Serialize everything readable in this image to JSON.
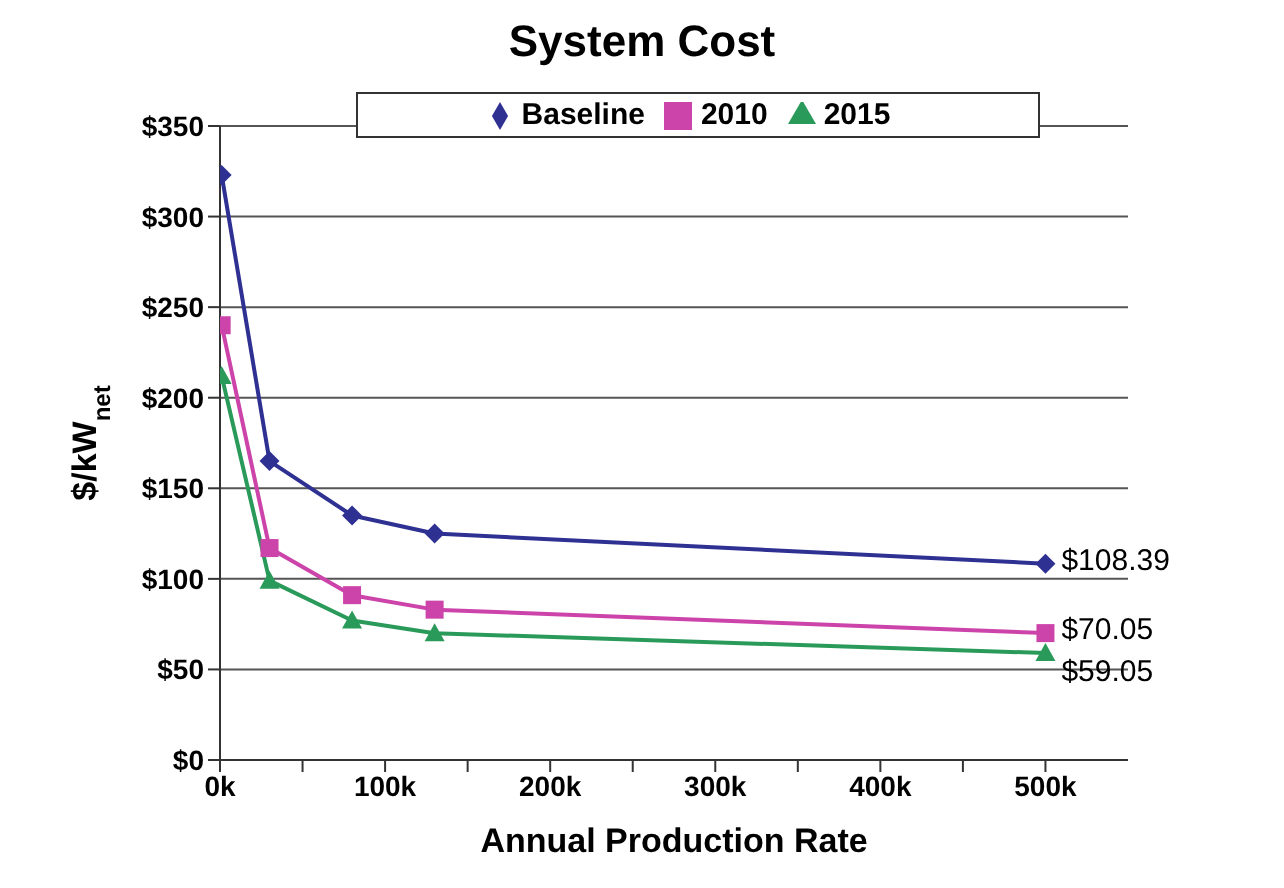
{
  "chart_data": {
    "type": "line",
    "title": "System Cost",
    "xlabel": "Annual Production Rate",
    "ylabel": "$/kW$_{net}$",
    "x": [
      1000,
      30000,
      80000,
      130000,
      500000
    ],
    "series": [
      {
        "name": "Baseline",
        "color": "#2e3192",
        "marker": "diamond",
        "values": [
          323,
          165,
          135,
          125,
          108.39
        ],
        "value_labels": [
          null,
          null,
          null,
          null,
          "$108.39"
        ]
      },
      {
        "name": "2010",
        "color": "#cc44aa",
        "marker": "square",
        "values": [
          240,
          117,
          91,
          83,
          70.05
        ],
        "value_labels": [
          null,
          null,
          null,
          null,
          "$70.05"
        ]
      },
      {
        "name": "2015",
        "color": "#2a9a5a",
        "marker": "triangle",
        "values": [
          212,
          99,
          77,
          70,
          59.05
        ],
        "value_labels": [
          null,
          null,
          null,
          null,
          "$59.05"
        ]
      }
    ],
    "xlim": [
      0,
      550000
    ],
    "xticks": [
      {
        "value": 0,
        "label": "0k"
      },
      {
        "value": 50000,
        "label": null
      },
      {
        "value": 100000,
        "label": "100k"
      },
      {
        "value": 150000,
        "label": null
      },
      {
        "value": 200000,
        "label": "200k"
      },
      {
        "value": 250000,
        "label": null
      },
      {
        "value": 300000,
        "label": "300k"
      },
      {
        "value": 350000,
        "label": null
      },
      {
        "value": 400000,
        "label": "400k"
      },
      {
        "value": 450000,
        "label": null
      },
      {
        "value": 500000,
        "label": "500k"
      }
    ],
    "ylim": [
      0,
      350
    ],
    "yticks": [
      {
        "value": 0,
        "label": "$0"
      },
      {
        "value": 50,
        "label": "$50"
      },
      {
        "value": 100,
        "label": "$100"
      },
      {
        "value": 150,
        "label": "$150"
      },
      {
        "value": 200,
        "label": "$200"
      },
      {
        "value": 250,
        "label": "$250"
      },
      {
        "value": 300,
        "label": "$300"
      },
      {
        "value": 350,
        "label": "$350"
      }
    ],
    "grid": "y",
    "legend": "top",
    "line_style": "solid"
  }
}
